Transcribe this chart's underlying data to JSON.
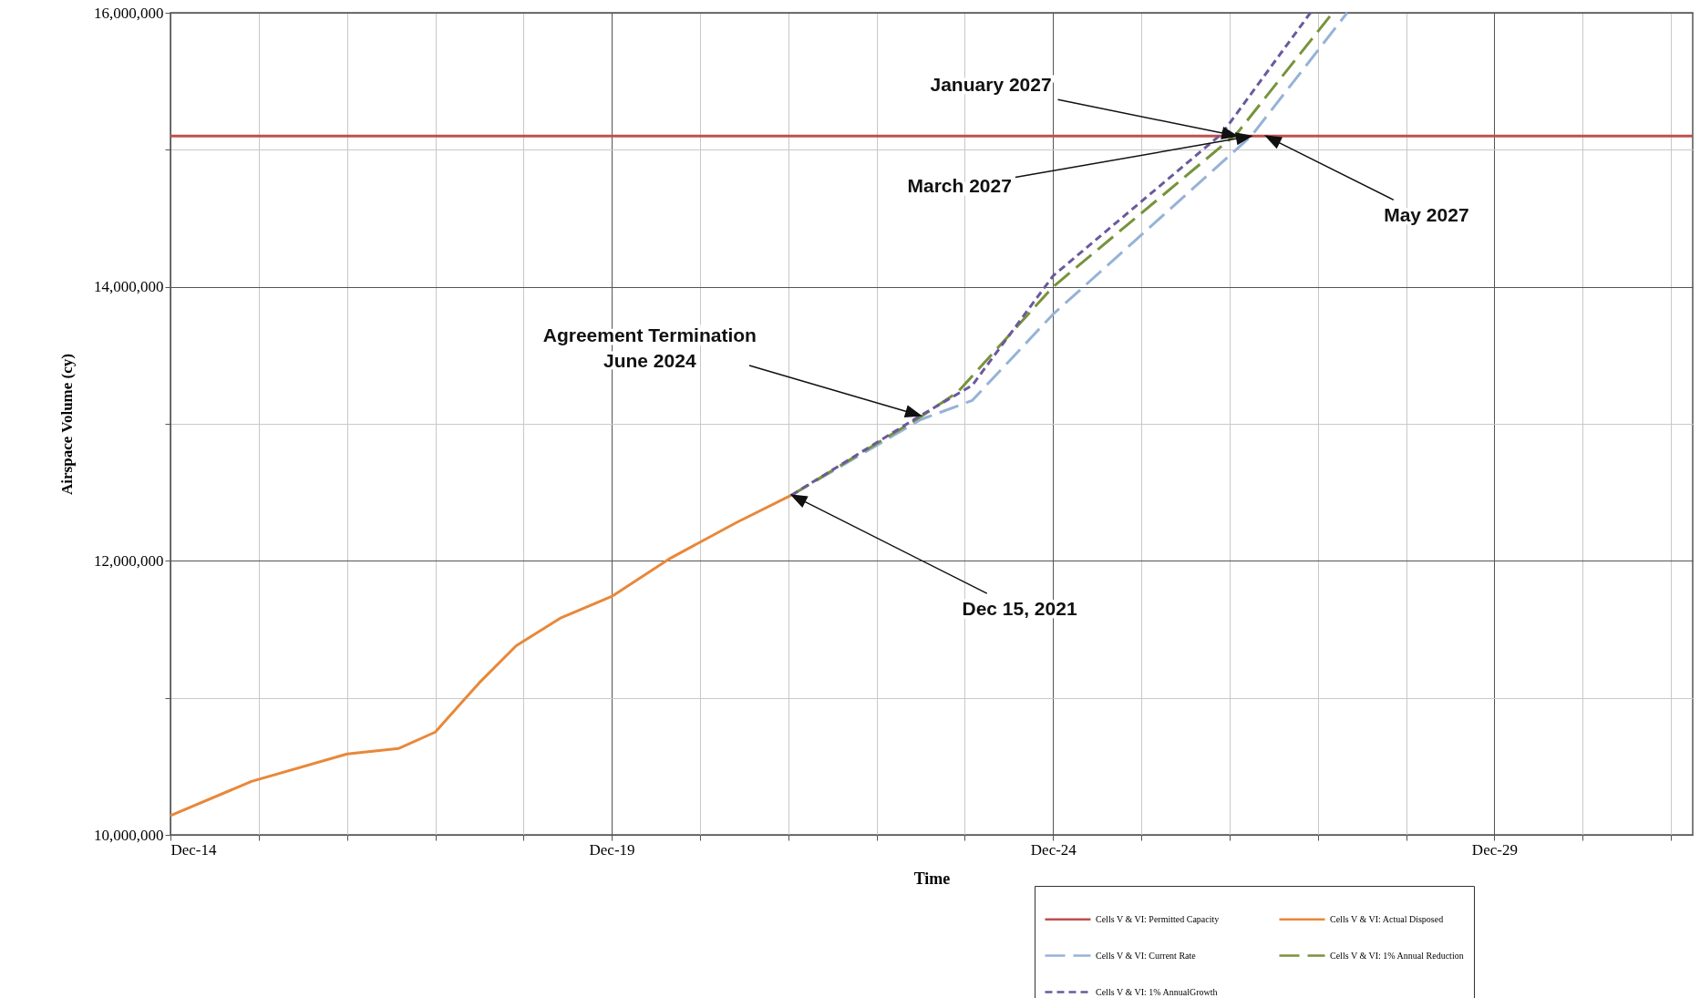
{
  "chart_data": {
    "type": "line",
    "xlabel": "Time",
    "ylabel": "Airspace Volume (cy)",
    "xlim": [
      "2014-12",
      "2032-03"
    ],
    "xticks": [
      {
        "value": "2014-12",
        "label": "Dec-14"
      },
      {
        "value": "2015-12",
        "label": null
      },
      {
        "value": "2016-12",
        "label": null
      },
      {
        "value": "2017-12",
        "label": null
      },
      {
        "value": "2018-12",
        "label": null
      },
      {
        "value": "2019-12",
        "label": "Dec-19"
      },
      {
        "value": "2020-12",
        "label": null
      },
      {
        "value": "2021-12",
        "label": null
      },
      {
        "value": "2022-12",
        "label": null
      },
      {
        "value": "2023-12",
        "label": null
      },
      {
        "value": "2024-12",
        "label": "Dec-24"
      },
      {
        "value": "2025-12",
        "label": null
      },
      {
        "value": "2026-12",
        "label": null
      },
      {
        "value": "2027-12",
        "label": null
      },
      {
        "value": "2028-12",
        "label": null
      },
      {
        "value": "2029-12",
        "label": "Dec-29"
      },
      {
        "value": "2030-12",
        "label": null
      },
      {
        "value": "2031-12",
        "label": null
      }
    ],
    "ylim": [
      10000000,
      16000000
    ],
    "yticks": [
      {
        "value": 10000000,
        "label": "10,000,000"
      },
      {
        "value": 11000000,
        "label": null
      },
      {
        "value": 12000000,
        "label": "12,000,000"
      },
      {
        "value": 13000000,
        "label": null
      },
      {
        "value": 14000000,
        "label": "14,000,000"
      },
      {
        "value": 15000000,
        "label": null
      },
      {
        "value": 16000000,
        "label": "16,000,000"
      }
    ],
    "grid": true,
    "legend": "bottom right",
    "series": [
      {
        "name": "Cells V & VI: Permitted Capacity",
        "color": "#c0504d",
        "line_style": "solid",
        "x": [
          "2014-12",
          "2032-03"
        ],
        "values": [
          15100000,
          15100000
        ]
      },
      {
        "name": "Cells V & VI: Actual Disposed",
        "color": "#e8883a",
        "line_style": "solid",
        "x": [
          "2014-12",
          "2015-11",
          "2016-12",
          "2017-07",
          "2017-12",
          "2018-06",
          "2018-11",
          "2019-05",
          "2019-12",
          "2020-08",
          "2021-05",
          "2021-12-15"
        ],
        "values": [
          10140000,
          10390000,
          10590000,
          10630000,
          10750000,
          11110000,
          11380000,
          11580000,
          11740000,
          12020000,
          12280000,
          12480000
        ]
      },
      {
        "name": "Cells V & VI: Current Rate",
        "color": "#95b3d7",
        "line_style": "dashed",
        "x": [
          "2021-12-15",
          "2023-06",
          "2024-01",
          "2024-12",
          "2027-03",
          "2028-04"
        ],
        "values": [
          12480000,
          13030000,
          13170000,
          13800000,
          15100000,
          16000000
        ]
      },
      {
        "name": "Cells V & VI: 1% Annual Reduction",
        "color": "#77933c",
        "line_style": "dashed",
        "x": [
          "2021-12-15",
          "2023-06",
          "2023-11",
          "2024-12",
          "2027-01",
          "2028-02"
        ],
        "values": [
          12480000,
          13050000,
          13230000,
          14000000,
          15120000,
          16000000
        ]
      },
      {
        "name": "Cells V & VI: 1% AnnualGrowth",
        "color": "#6a5a9c",
        "line_style": "dotted",
        "x": [
          "2021-12-15",
          "2023-06",
          "2024-01",
          "2024-12",
          "2026-11",
          "2027-11"
        ],
        "values": [
          12480000,
          13060000,
          13280000,
          14080000,
          15120000,
          16000000
        ]
      }
    ],
    "annotations": [
      {
        "text": "January  2027",
        "x": "2027-01",
        "y": 15100000
      },
      {
        "text": "March 2027",
        "x": "2027-03",
        "y": 15100000
      },
      {
        "text": "May 2027",
        "x": "2027-05",
        "y": 15100000
      },
      {
        "text": "Agreement Termination June 2024",
        "x": "2023-06",
        "y": 13060000
      },
      {
        "text": "Dec 15, 2021",
        "x": "2021-12-15",
        "y": 12480000
      }
    ]
  }
}
